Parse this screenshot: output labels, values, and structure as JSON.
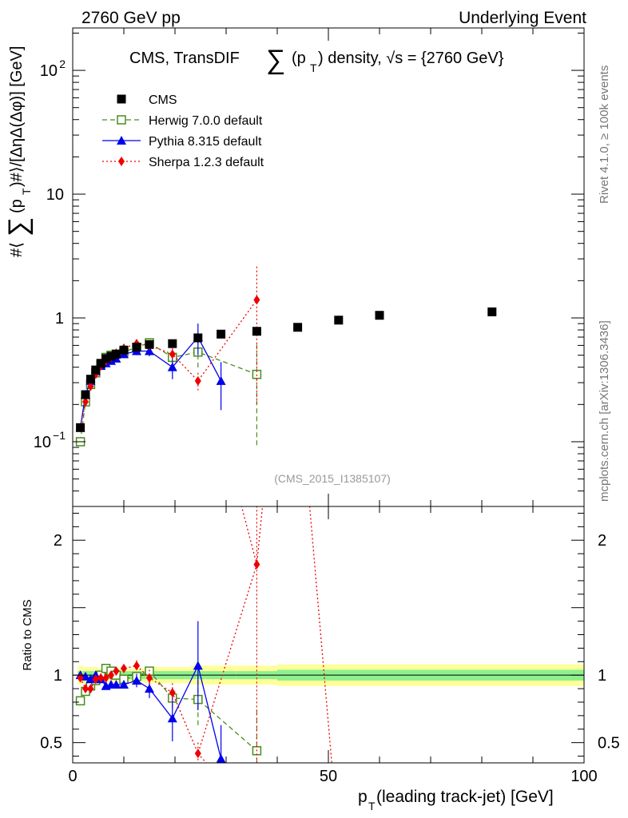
{
  "header": {
    "left": "2760 GeV pp",
    "right": "Underlying Event"
  },
  "title": {
    "prefix": "CMS, TransDIF ",
    "sigma": "∑",
    "pt": "(p",
    "pt_sub": "T",
    "suffix": ") density, √s = {2760 GeV}"
  },
  "ylabel_main": {
    "a": "#⟨",
    "sigma": "∑",
    "b": "(p",
    "sub": "T",
    "c": ")#⟩/[ΔηΔ(Δφ)] [GeV]"
  },
  "ylabel_ratio": "Ratio to CMS",
  "xlabel": {
    "a": "p",
    "sub": "T",
    "b": " (leading track-jet) [GeV]"
  },
  "side_labels": {
    "rivet": "Rivet 4.1.0, ≥ 100k events",
    "mcplots": "mcplots.cern.ch [arXiv:1306.3436]"
  },
  "watermark": "(CMS_2015_I1385107)",
  "axes": {
    "main_yticks": [
      {
        "value": 0.1,
        "label": "10",
        "exp": "−1"
      },
      {
        "value": 1,
        "label": "1",
        "exp": ""
      },
      {
        "value": 10,
        "label": "10",
        "exp": ""
      },
      {
        "value": 100,
        "label": "10",
        "exp": "2"
      }
    ],
    "ratio_yticks": [
      {
        "value": 0.5,
        "label": "0.5"
      },
      {
        "value": 1,
        "label": "1"
      },
      {
        "value": 2,
        "label": "2"
      }
    ],
    "xticks": [
      {
        "value": 0,
        "label": "0"
      },
      {
        "value": 50,
        "label": "50"
      },
      {
        "value": 100,
        "label": "100"
      }
    ]
  },
  "chart_data": {
    "type": "scatter",
    "title": "CMS, TransDIF ∑(pT) density, √s = {2760 GeV}",
    "xlabel": "pT (leading track-jet) [GeV]",
    "ylabel": "#⟨∑(pT)#⟩/[ΔηΔ(Δφ)] [GeV]",
    "xlim": [
      0,
      100
    ],
    "ylim": [
      0.03,
      220
    ],
    "yscale": "log",
    "ratio_ylim": [
      0.35,
      2.25
    ],
    "legend_position": "top-left",
    "band_colors": {
      "inner": "#8ef08e",
      "outer": "#ffff99"
    },
    "series": [
      {
        "name": "CMS",
        "style": "data",
        "color": "#000000",
        "x": [
          1.5,
          2.5,
          3.5,
          4.5,
          5.5,
          6.5,
          7.5,
          8.5,
          10,
          12.5,
          15,
          19.5,
          24.5,
          29,
          36,
          44,
          52,
          60,
          82
        ],
        "y": [
          0.13,
          0.24,
          0.32,
          0.38,
          0.43,
          0.47,
          0.49,
          0.51,
          0.55,
          0.58,
          0.61,
          0.62,
          0.69,
          0.74,
          0.78,
          0.84,
          0.96,
          1.05,
          1.12
        ]
      },
      {
        "name": "Herwig 7.0.0 default",
        "style": "dashed",
        "color": "#4a8c1c",
        "marker": "open-square",
        "x": [
          1.5,
          2.5,
          3.5,
          4.5,
          5.5,
          6.5,
          7.5,
          8.5,
          10,
          12.5,
          15,
          19.5,
          24.5,
          36
        ],
        "y": [
          0.1,
          0.21,
          0.29,
          0.36,
          0.42,
          0.48,
          0.5,
          0.51,
          0.53,
          0.58,
          0.63,
          0.48,
          0.53,
          0.35
        ],
        "yerr": [
          0,
          0,
          0,
          0,
          0,
          0,
          0,
          0,
          0,
          0,
          0,
          0.06,
          0.15,
          0.26
        ],
        "ratio": [
          0.81,
          0.88,
          0.92,
          0.96,
          1.0,
          1.05,
          1.03,
          1.0,
          0.97,
          0.99,
          1.03,
          0.83,
          0.82,
          0.44
        ],
        "ratio_err": [
          0,
          0,
          0,
          0,
          0,
          0,
          0,
          0,
          0,
          0,
          0,
          0.08,
          0.2,
          0.3
        ]
      },
      {
        "name": "Pythia 8.315 default",
        "style": "solid",
        "color": "#0000ee",
        "marker": "triangle",
        "x": [
          1.5,
          2.5,
          3.5,
          4.5,
          5.5,
          6.5,
          7.5,
          8.5,
          10,
          12.5,
          15,
          19.5,
          24.5,
          29
        ],
        "y": [
          0.13,
          0.24,
          0.31,
          0.37,
          0.41,
          0.43,
          0.45,
          0.47,
          0.51,
          0.54,
          0.54,
          0.4,
          0.7,
          0.31
        ],
        "yerr": [
          0,
          0,
          0,
          0,
          0,
          0,
          0,
          0,
          0,
          0.04,
          0.05,
          0.08,
          0.2,
          0.13
        ],
        "ratio": [
          1.0,
          0.99,
          0.97,
          1.0,
          0.97,
          0.92,
          0.93,
          0.93,
          0.93,
          0.96,
          0.9,
          0.68,
          1.07,
          0.38
        ],
        "ratio_err": [
          0,
          0,
          0,
          0,
          0,
          0,
          0,
          0.03,
          0.03,
          0.05,
          0.07,
          0.17,
          0.33,
          0.25
        ]
      },
      {
        "name": "Sherpa 1.2.3 default",
        "style": "dotted",
        "color": "#ee0000",
        "marker": "diamond",
        "x": [
          1.5,
          2.5,
          3.5,
          4.5,
          5.5,
          6.5,
          7.5,
          8.5,
          10,
          12.5,
          15,
          19.5,
          24.5,
          36
        ],
        "y": [
          0.13,
          0.21,
          0.28,
          0.35,
          0.41,
          0.45,
          0.48,
          0.52,
          0.57,
          0.62,
          0.6,
          0.51,
          0.31,
          1.4
        ],
        "yerr": [
          0,
          0,
          0,
          0,
          0,
          0,
          0,
          0,
          0,
          0.04,
          0.05,
          0.06,
          0.05,
          1.2
        ],
        "ratio": [
          0.98,
          0.9,
          0.9,
          0.97,
          0.98,
          0.98,
          1.0,
          1.03,
          1.05,
          1.07,
          0.98,
          0.87,
          0.42,
          1.82
        ],
        "ratio_err": [
          0,
          0,
          0,
          0,
          0,
          0,
          0,
          0,
          0,
          0.04,
          0.06,
          0.07,
          0.08,
          0
        ]
      }
    ]
  }
}
